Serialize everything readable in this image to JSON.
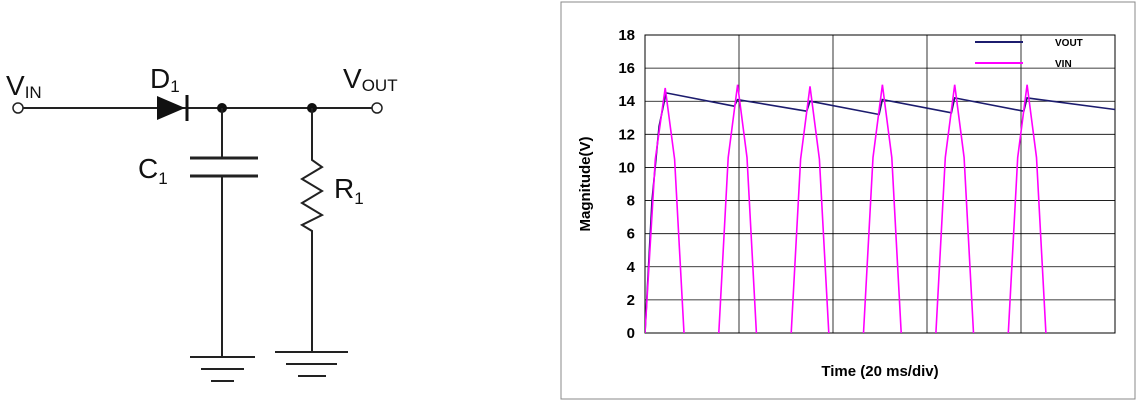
{
  "circuit": {
    "vin": {
      "base": "V",
      "sub": "IN"
    },
    "d1": {
      "base": "D",
      "sub": "1"
    },
    "vout": {
      "base": "V",
      "sub": "OUT"
    },
    "c1": {
      "base": "C",
      "sub": "1"
    },
    "r1": {
      "base": "R",
      "sub": "1"
    }
  },
  "chart_data": {
    "type": "line",
    "ylabel": "Magnitude(V)",
    "xlabel": "Time (20 ms/div)",
    "xlim": [
      0,
      100
    ],
    "xticks": [
      0,
      20,
      40,
      60,
      80,
      100
    ],
    "ylim": [
      0,
      18
    ],
    "yticks": [
      0,
      2,
      4,
      6,
      8,
      10,
      12,
      14,
      16,
      18
    ],
    "grid": true,
    "legend": "upper right",
    "series": [
      {
        "name": "VOUT",
        "color": "#1c1c6e",
        "x": [
          0,
          1.5,
          3,
          4.5,
          19.0,
          19.7,
          34.4,
          35.1,
          49.8,
          50.5,
          65.2,
          65.9,
          80.6,
          81.3,
          100
        ],
        "values": [
          0,
          8,
          12.5,
          14.5,
          13.7,
          14.1,
          13.4,
          14.0,
          13.2,
          14.1,
          13.3,
          14.2,
          13.4,
          14.2,
          13.5
        ]
      },
      {
        "name": "VIN",
        "color": "#ff00ff",
        "x": [
          0,
          2.2,
          4.3,
          6.3,
          8.3,
          null,
          15.7,
          17.7,
          19.7,
          21.7,
          23.7,
          null,
          31.1,
          33.1,
          35.1,
          37.1,
          39.1,
          null,
          46.5,
          48.5,
          50.5,
          52.5,
          54.5,
          null,
          61.9,
          63.9,
          65.9,
          67.9,
          69.9,
          null,
          77.3,
          79.3,
          81.3,
          83.3,
          85.3
        ],
        "values": [
          0,
          10.5,
          14.8,
          10.5,
          0,
          null,
          0,
          10.6,
          15,
          10.6,
          0,
          null,
          0,
          10.5,
          14.9,
          10.5,
          0,
          null,
          0,
          10.6,
          15,
          10.6,
          0,
          null,
          0,
          10.6,
          15,
          10.6,
          0,
          null,
          0,
          10.6,
          15,
          10.6,
          0
        ]
      }
    ]
  }
}
